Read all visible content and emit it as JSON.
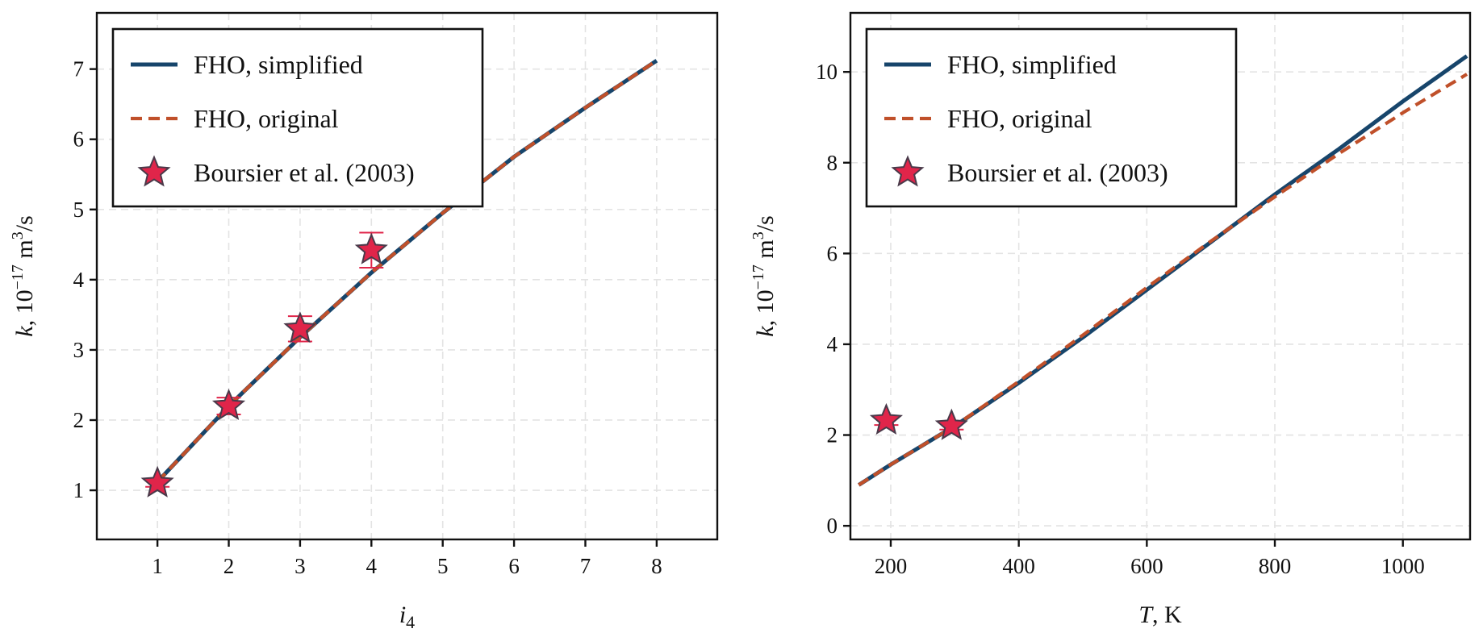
{
  "colors": {
    "simplified": "#17456b",
    "original": "#c0502a",
    "marker_fill": "#e0254a",
    "marker_edge": "#4a3a4a",
    "errorbar": "#e0254a"
  },
  "chart_data": [
    {
      "type": "line",
      "title": "",
      "xlabel": "i",
      "xlabel_sub": "4",
      "ylabel_prefix": "k",
      "ylabel_rest": ", 10",
      "ylabel_exp1": "−17",
      "ylabel_unit": " m",
      "ylabel_exp2": "3",
      "ylabel_tail": "/s",
      "xlim": [
        0.15,
        8.85
      ],
      "ylim": [
        0.3,
        7.8
      ],
      "xticks": [
        1,
        2,
        3,
        4,
        5,
        6,
        7,
        8
      ],
      "yticks": [
        1,
        2,
        3,
        4,
        5,
        6,
        7
      ],
      "grid": true,
      "legend_position": "top-left",
      "series": [
        {
          "name": "FHO, simplified",
          "style": "solid",
          "x": [
            1,
            2,
            3,
            4,
            5,
            6,
            7,
            8
          ],
          "y": [
            1.12,
            2.2,
            3.18,
            4.1,
            4.95,
            5.75,
            6.45,
            7.12
          ]
        },
        {
          "name": "FHO, original",
          "style": "dashed",
          "x": [
            1,
            2,
            3,
            4,
            5,
            6,
            7,
            8
          ],
          "y": [
            1.12,
            2.2,
            3.18,
            4.1,
            4.95,
            5.75,
            6.45,
            7.12
          ]
        },
        {
          "name": "Boursier et al. (2003)",
          "style": "marker",
          "x": [
            1,
            2,
            3,
            4
          ],
          "y": [
            1.1,
            2.2,
            3.3,
            4.42
          ],
          "err": [
            0.05,
            0.12,
            0.18,
            0.25
          ]
        }
      ]
    },
    {
      "type": "line",
      "title": "",
      "xlabel": "T",
      "xlabel_sub": "",
      "xlabel_rest": ", K",
      "ylabel_prefix": "k",
      "ylabel_rest": ", 10",
      "ylabel_exp1": "−17",
      "ylabel_unit": " m",
      "ylabel_exp2": "3",
      "ylabel_tail": "/s",
      "xlim": [
        137,
        1105
      ],
      "ylim": [
        -0.3,
        11.3
      ],
      "xticks": [
        200,
        400,
        600,
        800,
        1000
      ],
      "yticks": [
        0,
        2,
        4,
        6,
        8,
        10
      ],
      "grid": true,
      "legend_position": "top-left",
      "series": [
        {
          "name": "FHO, simplified",
          "style": "solid",
          "x": [
            150,
            200,
            300,
            400,
            500,
            600,
            700,
            800,
            900,
            1000,
            1100
          ],
          "y": [
            0.9,
            1.35,
            2.2,
            3.15,
            4.15,
            5.2,
            6.25,
            7.3,
            8.3,
            9.35,
            10.35
          ]
        },
        {
          "name": "FHO, original",
          "style": "dashed",
          "x": [
            150,
            200,
            300,
            400,
            500,
            600,
            700,
            800,
            900,
            1000,
            1100
          ],
          "y": [
            0.9,
            1.35,
            2.2,
            3.18,
            4.2,
            5.25,
            6.27,
            7.25,
            8.2,
            9.1,
            9.95
          ]
        },
        {
          "name": "Boursier et al. (2003)",
          "style": "marker",
          "x": [
            193,
            295
          ],
          "y": [
            2.32,
            2.2
          ],
          "err": [
            0.1,
            0.08
          ]
        }
      ]
    }
  ]
}
